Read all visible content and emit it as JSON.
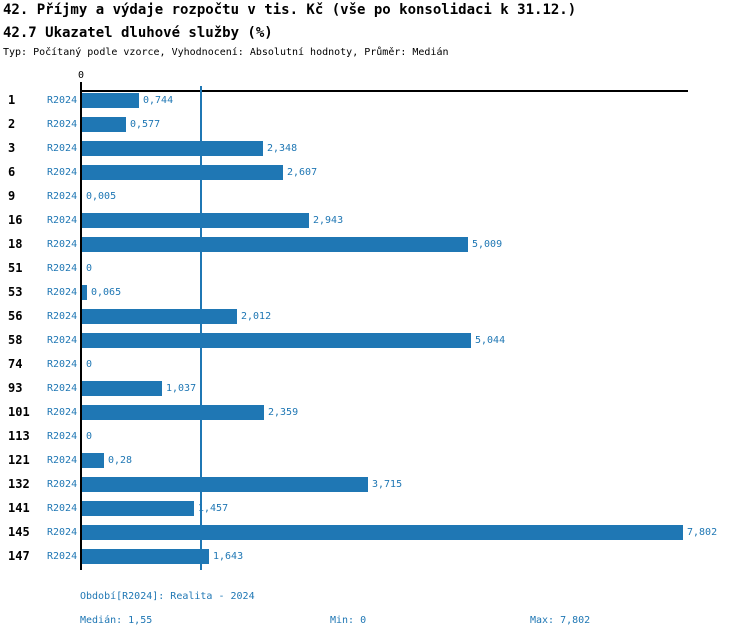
{
  "header": {
    "title_line1": "42. Příjmy a výdaje rozpočtu v tis. Kč (vše po konsolidaci k 31.12.)",
    "title_line2": "42.7 Ukazatel dluhové služby (%)",
    "subtitle": "Typ: Počítaný podle vzorce, Vyhodnocení: Absolutní hodnoty, Průměr: Medián"
  },
  "chart_data": {
    "type": "bar",
    "orientation": "horizontal",
    "title": "42.7 Ukazatel dluhové služby (%)",
    "categories": [
      "1",
      "2",
      "3",
      "6",
      "9",
      "16",
      "18",
      "51",
      "53",
      "56",
      "58",
      "74",
      "93",
      "101",
      "113",
      "121",
      "132",
      "141",
      "145",
      "147"
    ],
    "series_label": "R2024",
    "values": [
      0.744,
      0.577,
      2.348,
      2.607,
      0.005,
      2.943,
      5.009,
      0,
      0.065,
      2.012,
      5.044,
      0,
      1.037,
      2.359,
      0,
      0.28,
      3.715,
      1.457,
      7.802,
      1.643
    ],
    "value_labels": [
      "0,744",
      "0,577",
      "2,348",
      "2,607",
      "0,005",
      "2,943",
      "5,009",
      "0",
      "0,065",
      "2,012",
      "5,044",
      "0",
      "1,037",
      "2,359",
      "0",
      "0,28",
      "3,715",
      "1,457",
      "7,802",
      "1,643"
    ],
    "xlim": [
      0,
      7.802
    ],
    "axis_tick_label": "0",
    "median_line_value": 1.55,
    "bar_color": "#1f77b4",
    "grid": false,
    "legend_position": "none"
  },
  "footer": {
    "period": "Období[R2024]: Realita - 2024",
    "median": "Medián: 1,55",
    "min": "Min: 0",
    "max": "Max: 7,802"
  },
  "colors": {
    "accent": "#1f77b4",
    "text": "#000000",
    "axis": "#000000",
    "background": "#ffffff"
  }
}
